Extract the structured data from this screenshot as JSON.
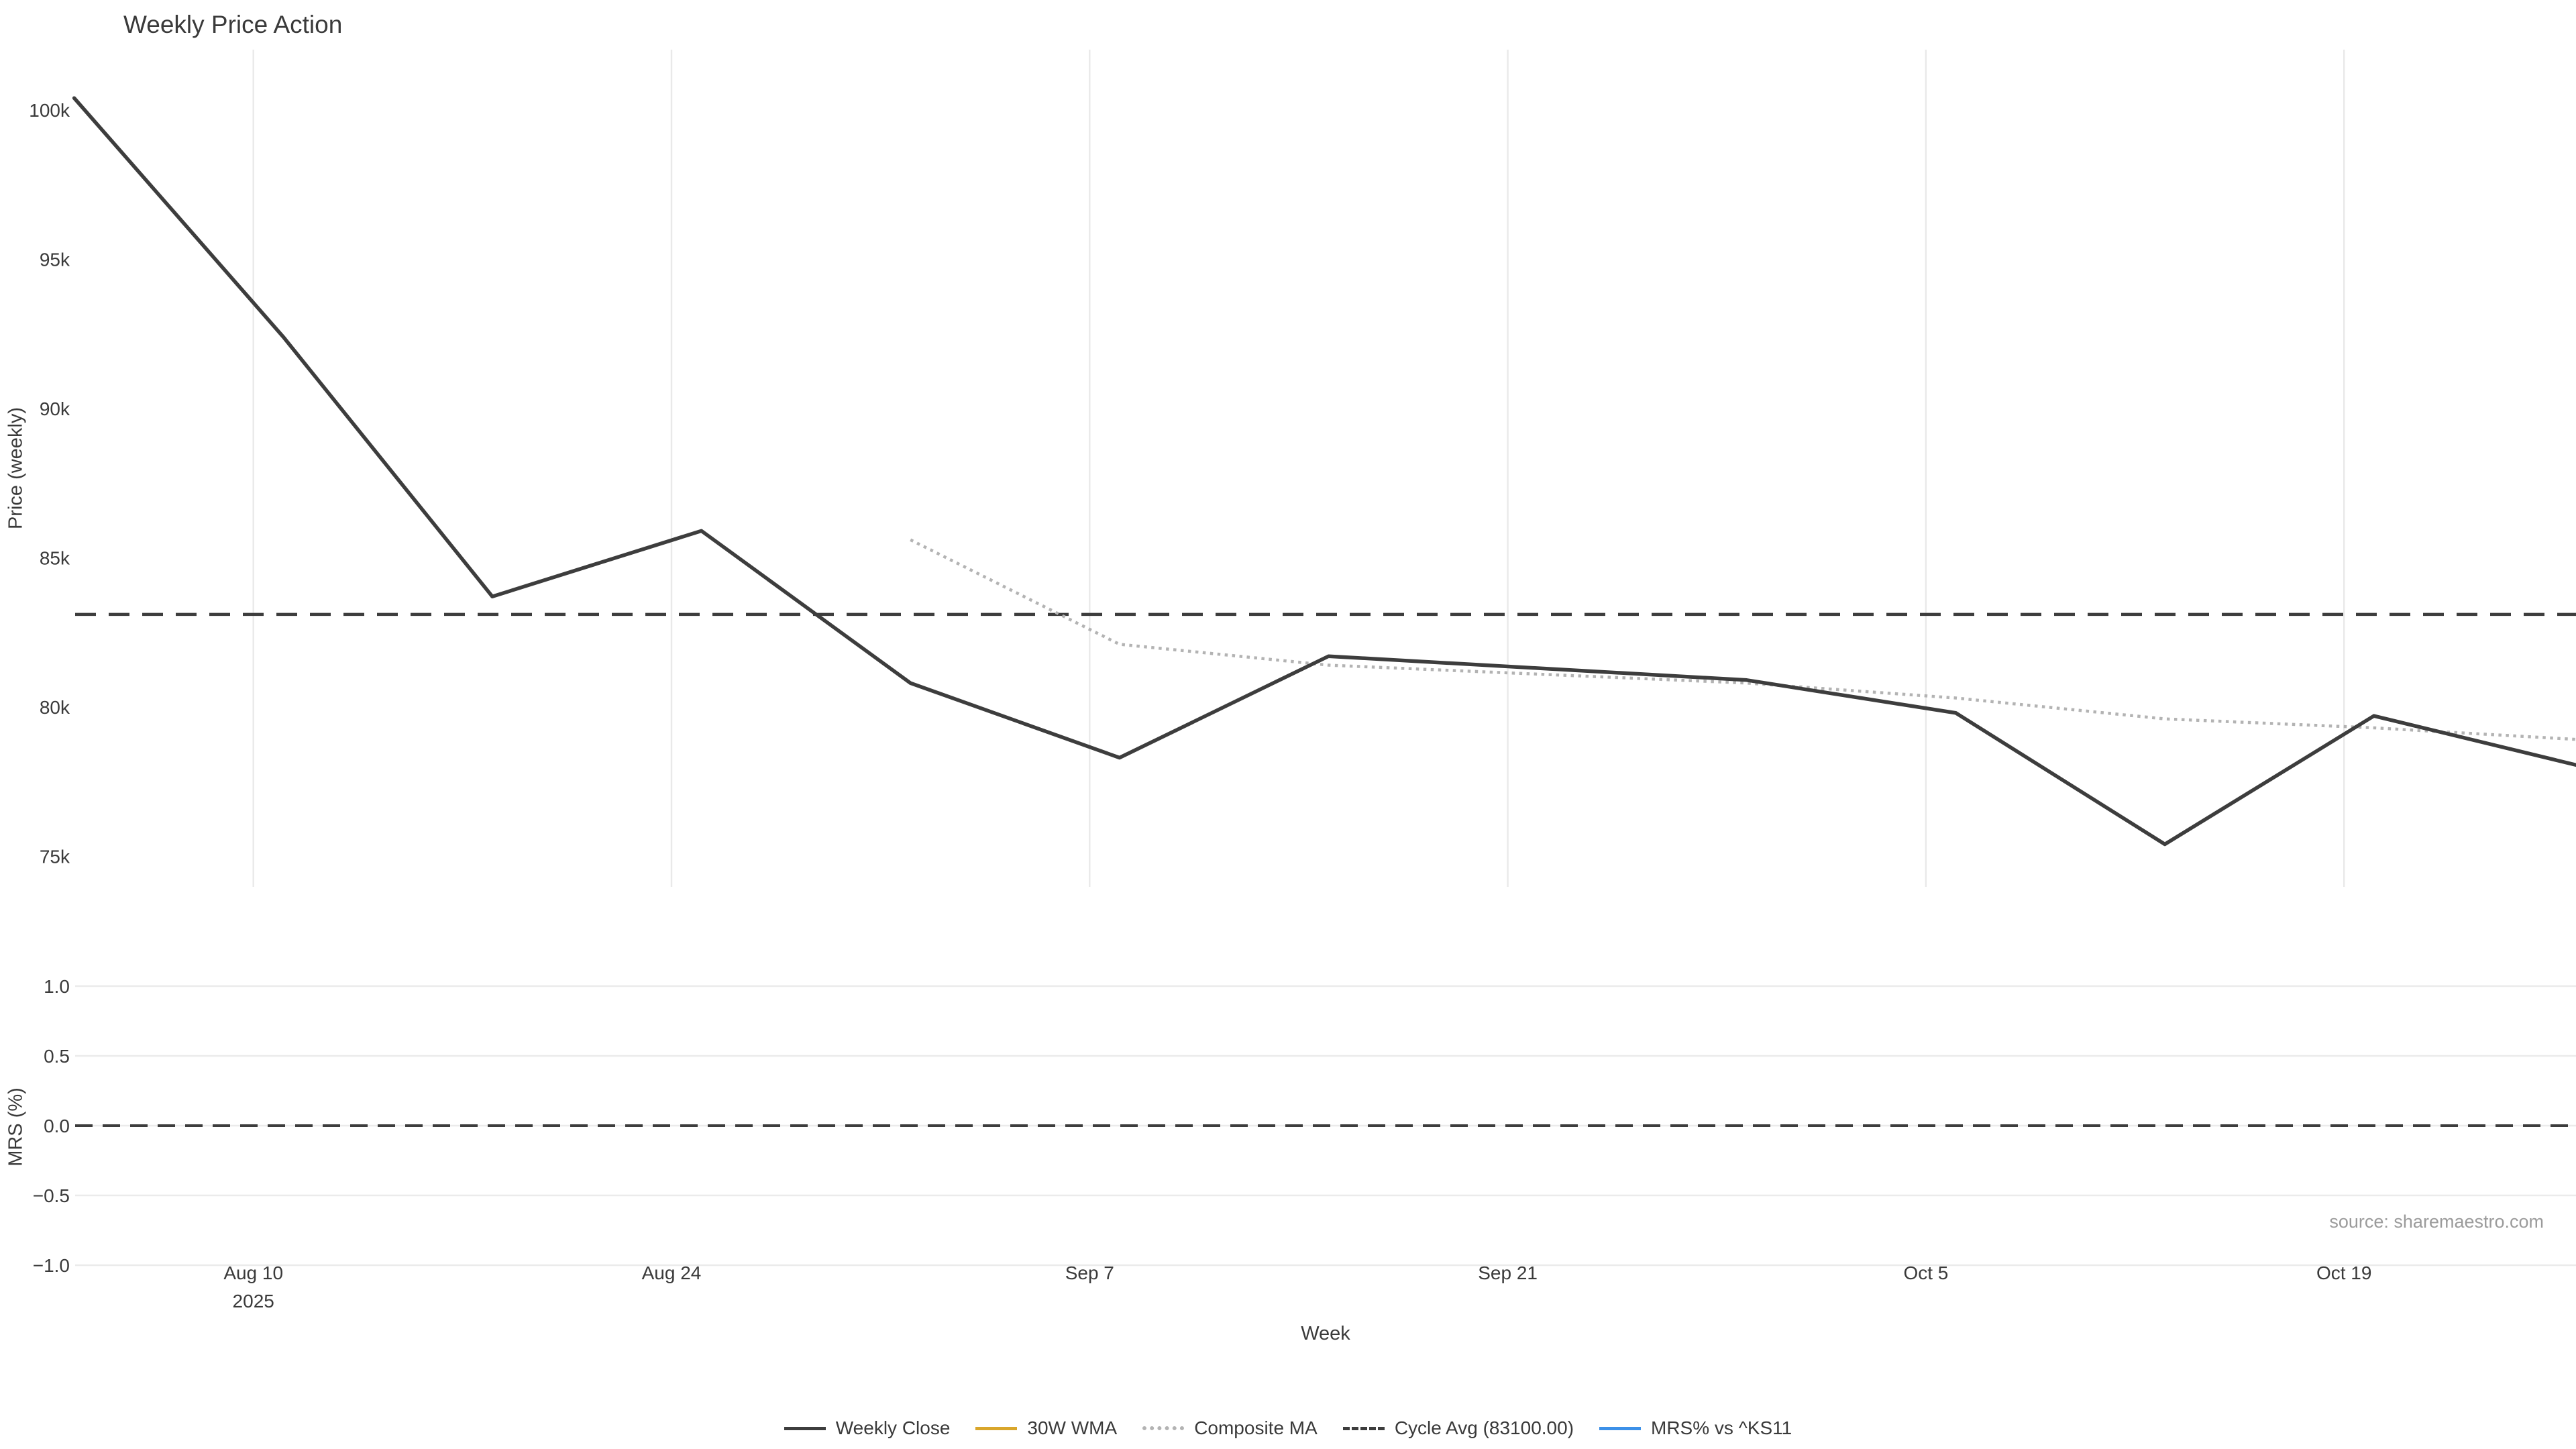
{
  "title": "Weekly Price Action",
  "source_note": "source: sharemaestro.com",
  "colors": {
    "weekly_close": "#3d3d3d",
    "wma_30w": "#d9a62b",
    "composite_ma": "#b3b3b3",
    "cycle_avg": "#3d3d3d",
    "mrs_line": "#3c90e8",
    "grid": "#e9e9e9",
    "text": "#3a3a3a",
    "muted_text": "#9b9b9b"
  },
  "legend": [
    {
      "label": "Weekly Close",
      "style": "solid-dark"
    },
    {
      "label": "30W WMA",
      "style": "solid-gold"
    },
    {
      "label": "Composite MA",
      "style": "dotted-gray"
    },
    {
      "label": "Cycle Avg (83100.00)",
      "style": "dashed-dark"
    },
    {
      "label": "MRS% vs ^KS11",
      "style": "solid-blue"
    }
  ],
  "chart_data": [
    {
      "type": "line",
      "panel": "price",
      "title": "Weekly Price Action",
      "xlabel": "Week",
      "ylabel": "Price (weekly)",
      "grid": "vertical",
      "ylim": [
        74000,
        102000
      ],
      "x": [
        "Aug 4",
        "Aug 11",
        "Aug 18",
        "Aug 25",
        "Sep 1",
        "Sep 8",
        "Sep 15",
        "Sep 22",
        "Sep 29",
        "Oct 6",
        "Oct 13",
        "Oct 20",
        "Oct 27"
      ],
      "x_year": "2025",
      "x_ticks": [
        {
          "label": "Aug 10",
          "sublabel": "2025"
        },
        {
          "label": "Aug 24"
        },
        {
          "label": "Sep 7"
        },
        {
          "label": "Sep 21"
        },
        {
          "label": "Oct 5"
        },
        {
          "label": "Oct 19"
        }
      ],
      "y_ticks": [
        {
          "value": 100000,
          "label": "100k"
        },
        {
          "value": 95000,
          "label": "95k"
        },
        {
          "value": 90000,
          "label": "90k"
        },
        {
          "value": 85000,
          "label": "85k"
        },
        {
          "value": 80000,
          "label": "80k"
        },
        {
          "value": 75000,
          "label": "75k"
        }
      ],
      "series": [
        {
          "name": "Weekly Close",
          "style": "solid-dark",
          "values": [
            100400,
            92400,
            83700,
            85900,
            80800,
            78300,
            81700,
            81300,
            80900,
            79800,
            75400,
            79700,
            78000
          ]
        },
        {
          "name": "30W WMA",
          "style": "solid-gold",
          "values": [
            null,
            null,
            null,
            null,
            null,
            null,
            null,
            null,
            null,
            null,
            null,
            null,
            null
          ]
        },
        {
          "name": "Composite MA",
          "style": "dotted-gray",
          "values": [
            null,
            null,
            null,
            null,
            85600,
            82100,
            81400,
            81100,
            80800,
            80300,
            79600,
            79300,
            78900
          ]
        },
        {
          "name": "Cycle Avg",
          "style": "dashed-dark",
          "type": "hline",
          "value": 83100
        }
      ]
    },
    {
      "type": "line",
      "panel": "mrs",
      "ylabel": "MRS (%)",
      "grid": "horizontal",
      "ylim": [
        -1.1,
        1.1
      ],
      "zero_line": "dashed-dark",
      "y_ticks": [
        {
          "value": 1.0,
          "label": "1.0"
        },
        {
          "value": 0.5,
          "label": "0.5"
        },
        {
          "value": 0.0,
          "label": "0.0"
        },
        {
          "value": -0.5,
          "label": "−0.5"
        },
        {
          "value": -1.0,
          "label": "−1.0"
        }
      ],
      "series": [
        {
          "name": "MRS% vs ^KS11",
          "style": "solid-blue",
          "values": []
        }
      ]
    }
  ]
}
